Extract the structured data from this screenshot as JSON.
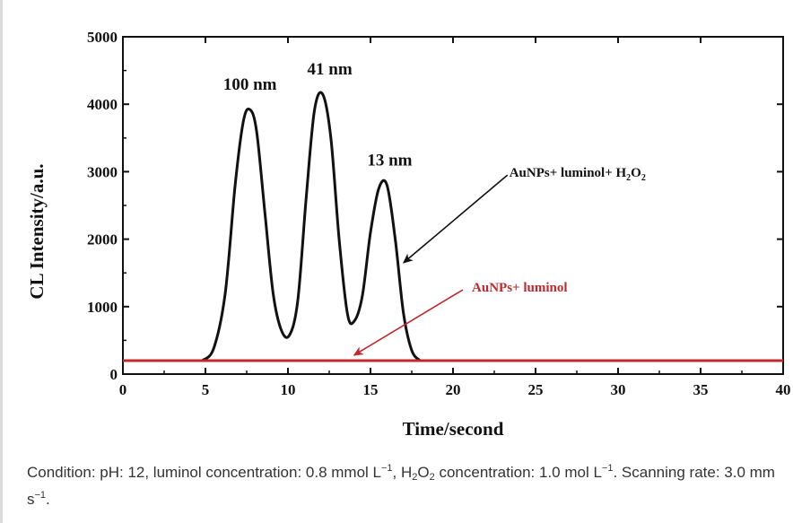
{
  "chart_data": {
    "type": "line",
    "xlabel": "Time/second",
    "ylabel": "CL Intensity/a.u.",
    "xlim": [
      0,
      40
    ],
    "ylim": [
      0,
      5000
    ],
    "x_ticks": [
      0,
      5,
      10,
      15,
      20,
      25,
      30,
      35,
      40
    ],
    "y_ticks": [
      0,
      1000,
      2000,
      3000,
      4000,
      5000
    ],
    "grid": false,
    "series": [
      {
        "name": "AuNPs+ luminol+ H2O2",
        "color": "#111111",
        "x": [
          4.8,
          5.5,
          6.2,
          6.8,
          7.3,
          7.7,
          8.1,
          8.6,
          9.1,
          9.6,
          10.1,
          10.6,
          11.1,
          11.6,
          12.1,
          12.6,
          13.1,
          13.6,
          14.0,
          14.5,
          15.0,
          15.5,
          16.0,
          16.5,
          17.0,
          17.5,
          18.0
        ],
        "y": [
          200,
          380,
          1200,
          2800,
          3750,
          3920,
          3600,
          2400,
          1200,
          650,
          580,
          1100,
          2600,
          3900,
          4150,
          3500,
          2000,
          900,
          780,
          1150,
          2100,
          2750,
          2800,
          2000,
          900,
          350,
          200
        ]
      },
      {
        "name": "AuNPs+ luminol",
        "color": "#c0282d",
        "x": [
          0,
          40
        ],
        "y": [
          200,
          200
        ]
      }
    ],
    "annotations": [
      {
        "text": "100 nm",
        "x": 7.7,
        "y": 3920,
        "color": "#111111"
      },
      {
        "text": "41 nm",
        "x": 12.1,
        "y": 4150,
        "color": "#111111"
      },
      {
        "text": "13 nm",
        "x": 16.0,
        "y": 2800,
        "color": "#111111"
      },
      {
        "label_main": "AuNPs+ luminol+ H",
        "label_sub1": "2",
        "label_mid": "O",
        "label_sub2": "2",
        "arrow_to": [
          17.0,
          1650
        ],
        "arrow_from": [
          23.3,
          2950
        ],
        "color": "#111111"
      },
      {
        "text": "AuNPs+ luminol",
        "arrow_to": [
          14.0,
          280
        ],
        "arrow_from": [
          20.6,
          1250
        ],
        "color": "#c0282d"
      }
    ]
  },
  "caption": {
    "t1": "Condition: pH: 12, luminol concentration: 0.8 mmol L",
    "sup1": "−1",
    "t2": ", H",
    "sub1": "2",
    "t3": "O",
    "sub2": "2",
    "t4": " concentration: 1.0 mol L",
    "sup2": "−1",
    "t5": ". Scanning rate: 3.0 mm s",
    "sup3": "−1",
    "t6": "."
  }
}
